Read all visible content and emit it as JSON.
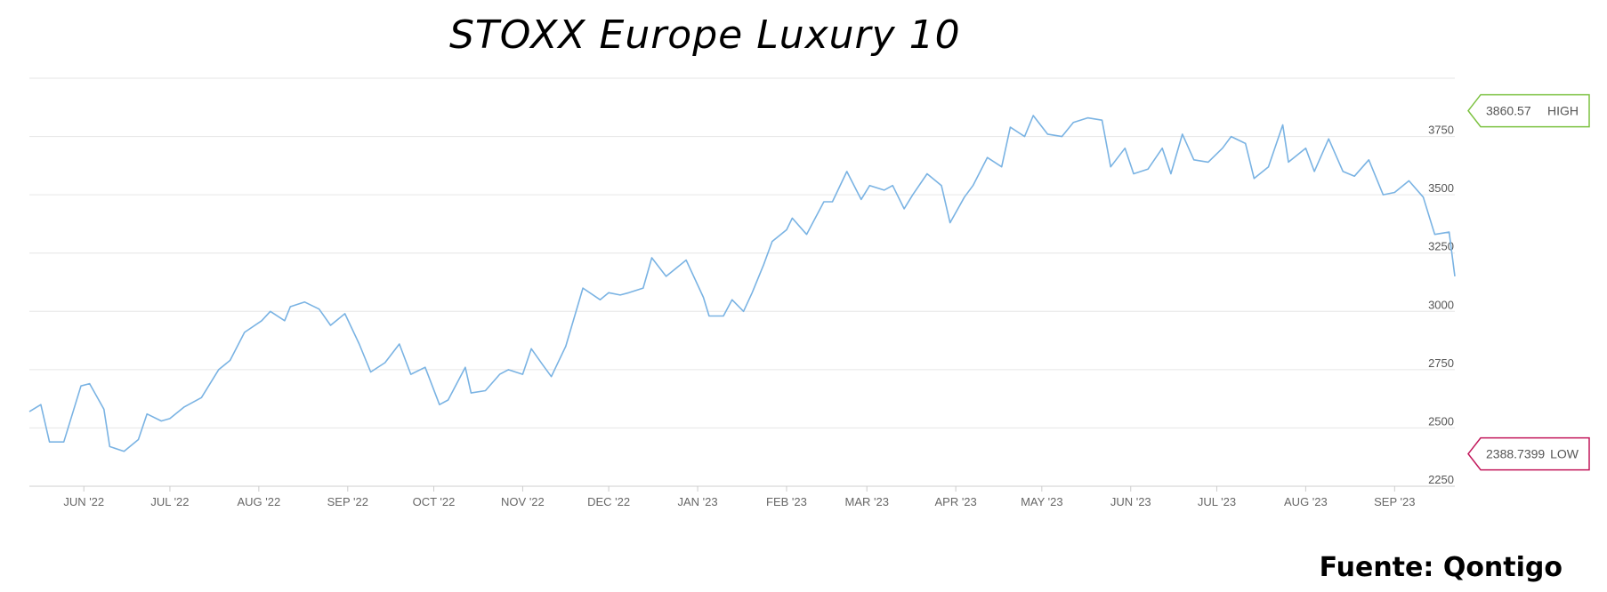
{
  "chart_data": {
    "type": "line",
    "title": "STOXX Europe Luxury 10",
    "xlabel": "",
    "ylabel": "",
    "ylim": [
      2250,
      4000
    ],
    "yticks": [
      2250,
      2500,
      2750,
      3000,
      3250,
      3500,
      3750
    ],
    "xticks": [
      "JUN '22",
      "JUL '22",
      "AUG '22",
      "SEP '22",
      "OCT '22",
      "NOV '22",
      "DEC '22",
      "JAN '23",
      "FEB '23",
      "MAR '23",
      "APR '23",
      "MAY '23",
      "JUN '23",
      "JUL '23",
      "AUG '23",
      "SEP '23"
    ],
    "grid": true,
    "line_color": "#7ab3e3",
    "high": {
      "label": "HIGH",
      "value": "3860.57",
      "color": "#7dc242"
    },
    "low": {
      "label": "LOW",
      "value": "2388.7399",
      "color": "#c2185b"
    },
    "series": [
      {
        "x": [
          "2022-05-13",
          "2022-05-17",
          "2022-05-20",
          "2022-05-25",
          "2022-05-31",
          "2022-06-03",
          "2022-06-08",
          "2022-06-10",
          "2022-06-15",
          "2022-06-20",
          "2022-06-23",
          "2022-06-28",
          "2022-07-01",
          "2022-07-06",
          "2022-07-12",
          "2022-07-18",
          "2022-07-22",
          "2022-07-27",
          "2022-08-02",
          "2022-08-05",
          "2022-08-10",
          "2022-08-12",
          "2022-08-17",
          "2022-08-22",
          "2022-08-26",
          "2022-08-31",
          "2022-09-05",
          "2022-09-09",
          "2022-09-14",
          "2022-09-19",
          "2022-09-23",
          "2022-09-28",
          "2022-10-03",
          "2022-10-06",
          "2022-10-12",
          "2022-10-14",
          "2022-10-19",
          "2022-10-24",
          "2022-10-27",
          "2022-11-01",
          "2022-11-04",
          "2022-11-08",
          "2022-11-11",
          "2022-11-16",
          "2022-11-22",
          "2022-11-28",
          "2022-12-01",
          "2022-12-05",
          "2022-12-08",
          "2022-12-13",
          "2022-12-16",
          "2022-12-21",
          "2022-12-28",
          "2023-01-03",
          "2023-01-05",
          "2023-01-10",
          "2023-01-13",
          "2023-01-17",
          "2023-01-20",
          "2023-01-24",
          "2023-01-27",
          "2023-02-01",
          "2023-02-03",
          "2023-02-08",
          "2023-02-14",
          "2023-02-17",
          "2023-02-22",
          "2023-02-27",
          "2023-03-02",
          "2023-03-07",
          "2023-03-10",
          "2023-03-14",
          "2023-03-17",
          "2023-03-22",
          "2023-03-27",
          "2023-03-30",
          "2023-04-04",
          "2023-04-07",
          "2023-04-12",
          "2023-04-17",
          "2023-04-20",
          "2023-04-25",
          "2023-04-28",
          "2023-05-03",
          "2023-05-08",
          "2023-05-12",
          "2023-05-17",
          "2023-05-22",
          "2023-05-25",
          "2023-05-30",
          "2023-06-02",
          "2023-06-07",
          "2023-06-12",
          "2023-06-15",
          "2023-06-19",
          "2023-06-23",
          "2023-06-28",
          "2023-07-03",
          "2023-07-06",
          "2023-07-11",
          "2023-07-14",
          "2023-07-19",
          "2023-07-24",
          "2023-07-26",
          "2023-08-01",
          "2023-08-04",
          "2023-08-09",
          "2023-08-14",
          "2023-08-18",
          "2023-08-23",
          "2023-08-28",
          "2023-09-01",
          "2023-09-06",
          "2023-09-11",
          "2023-09-15",
          "2023-09-20",
          "2023-09-22"
        ],
        "y": [
          2570,
          2600,
          2440,
          2440,
          2680,
          2690,
          2580,
          2420,
          2400,
          2450,
          2560,
          2530,
          2540,
          2590,
          2630,
          2750,
          2790,
          2910,
          2960,
          3000,
          2960,
          3020,
          3040,
          3010,
          2940,
          2990,
          2860,
          2740,
          2780,
          2860,
          2730,
          2760,
          2600,
          2620,
          2760,
          2650,
          2660,
          2730,
          2750,
          2730,
          2840,
          2770,
          2720,
          2850,
          3100,
          3050,
          3080,
          3070,
          3080,
          3100,
          3230,
          3150,
          3220,
          3060,
          2980,
          2980,
          3050,
          3000,
          3080,
          3200,
          3300,
          3350,
          3400,
          3330,
          3470,
          3470,
          3600,
          3480,
          3540,
          3520,
          3540,
          3440,
          3500,
          3590,
          3540,
          3380,
          3490,
          3540,
          3660,
          3620,
          3790,
          3750,
          3840,
          3760,
          3750,
          3810,
          3830,
          3820,
          3620,
          3700,
          3590,
          3610,
          3700,
          3590,
          3760,
          3650,
          3640,
          3700,
          3750,
          3720,
          3570,
          3620,
          3800,
          3640,
          3700,
          3600,
          3740,
          3600,
          3580,
          3650,
          3500,
          3510,
          3560,
          3490,
          3330,
          3340,
          3150
        ]
      }
    ]
  },
  "source_note": "Fuente: Qontigo"
}
